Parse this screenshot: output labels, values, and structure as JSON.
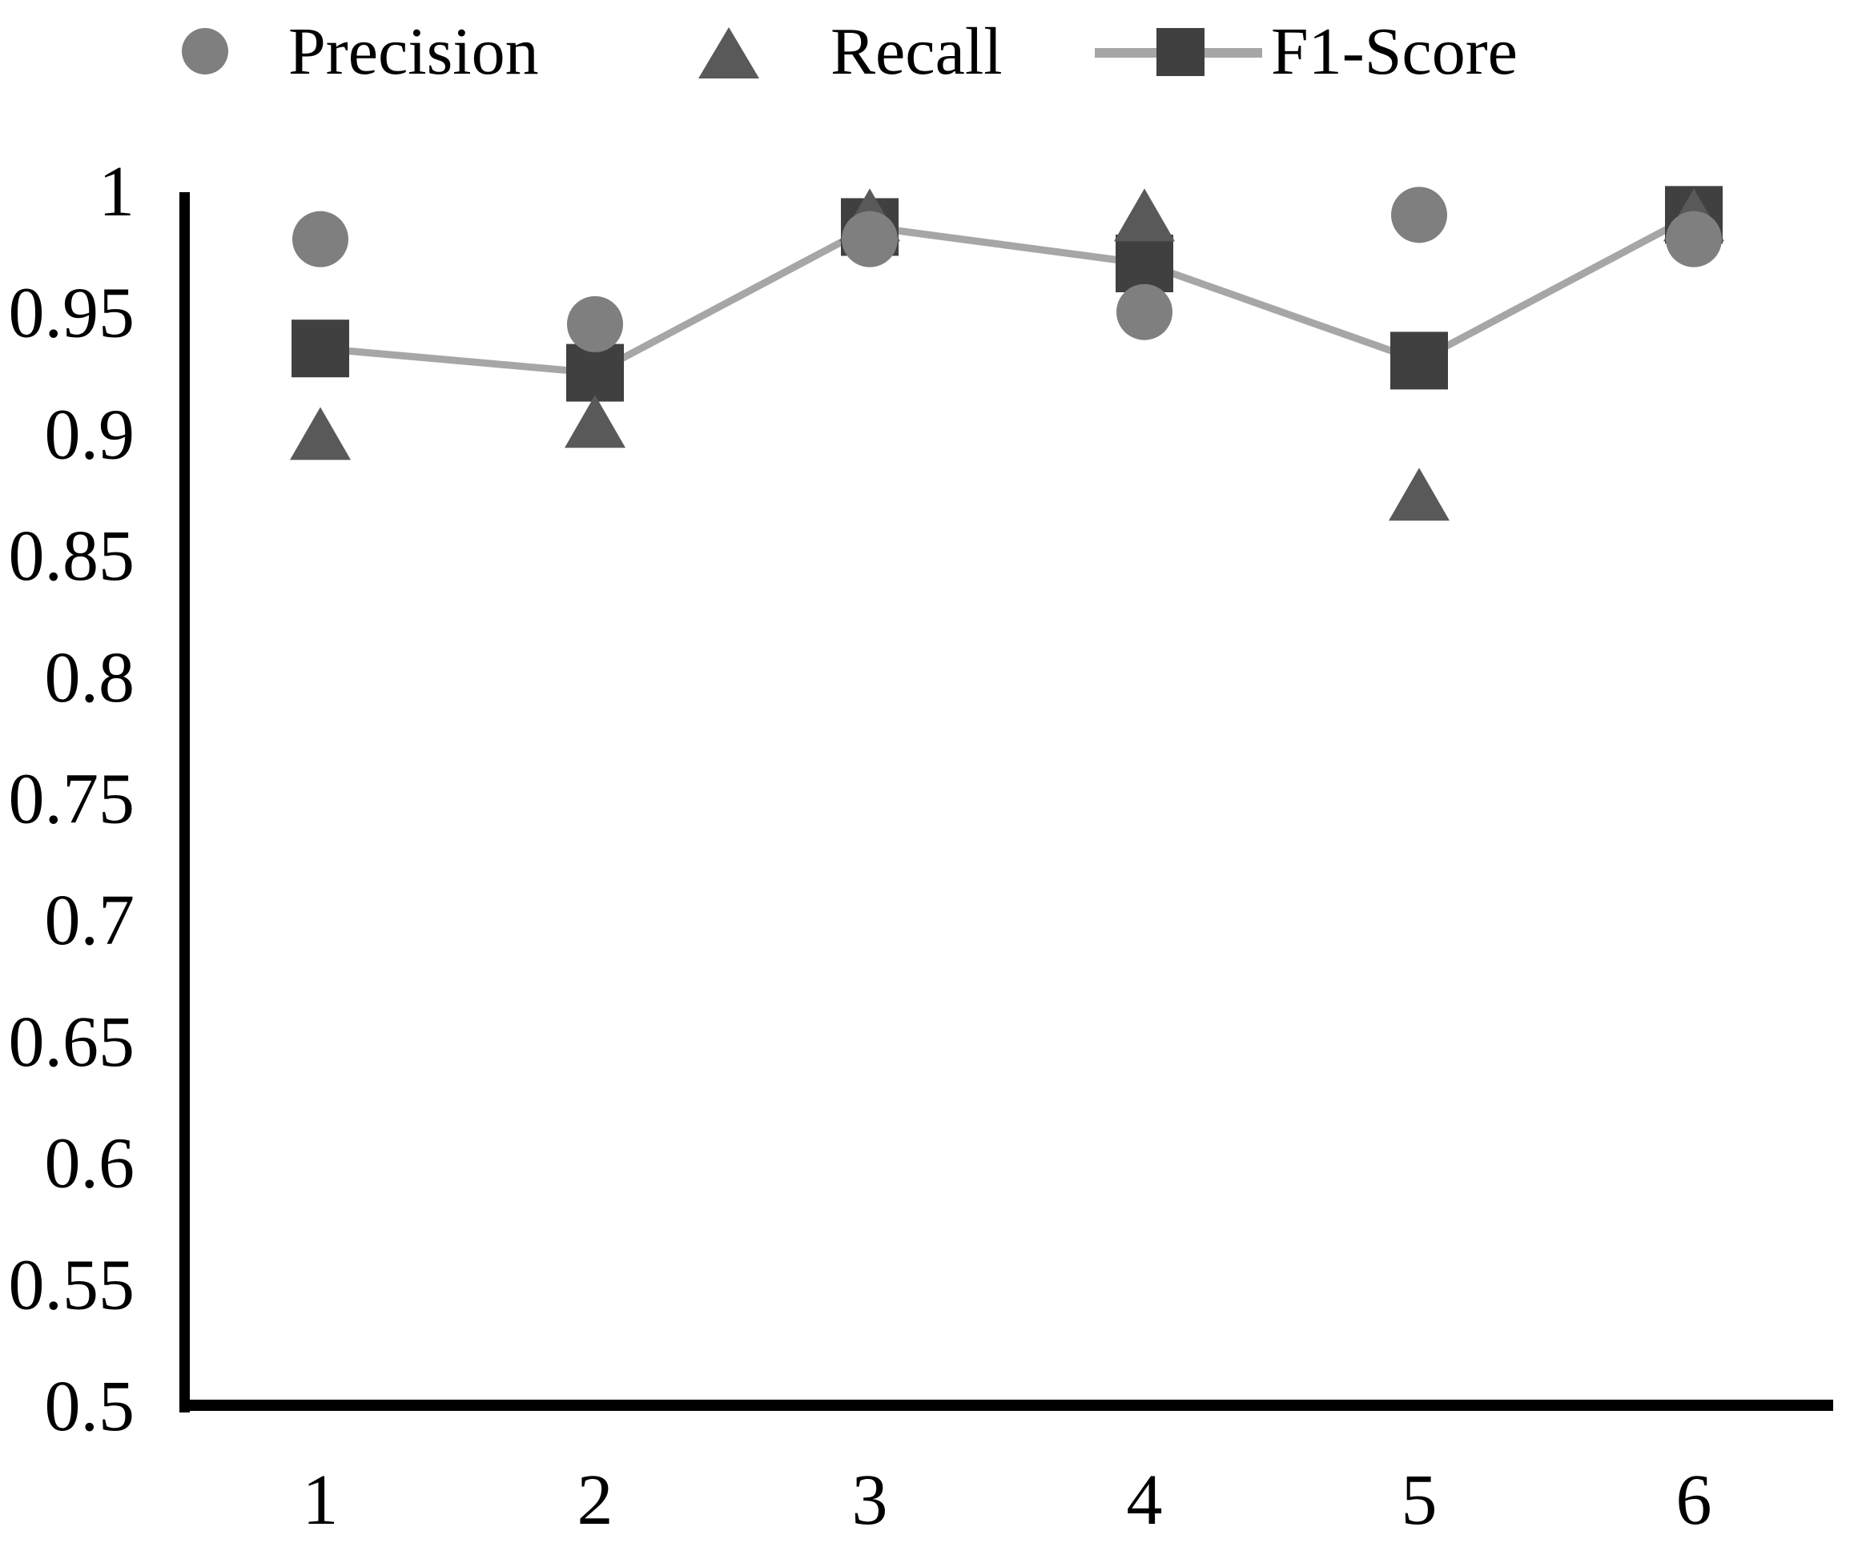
{
  "chart_data": {
    "type": "line",
    "title": "",
    "xlabel": "",
    "ylabel": "",
    "x": [
      1,
      2,
      3,
      4,
      5,
      6
    ],
    "xtick_labels": [
      "1",
      "2",
      "3",
      "4",
      "5",
      "6"
    ],
    "ytick_values": [
      1,
      0.95,
      0.9,
      0.85,
      0.8,
      0.75,
      0.7,
      0.65,
      0.6,
      0.55,
      0.5
    ],
    "ytick_labels": [
      "1",
      "0.95",
      "0.9",
      "0.85",
      "0.8",
      "0.75",
      "0.7",
      "0.65",
      "0.6",
      "0.55",
      "0.5"
    ],
    "ylim": [
      0.5,
      1
    ],
    "grid": false,
    "legend_position": "top",
    "background": "#ffffff",
    "axis_color": "#000000",
    "text_color": "#000000",
    "series": [
      {
        "name": "Precision",
        "marker": "circle",
        "color": "#7f7f7f",
        "line": false,
        "values": [
          0.98,
          0.945,
          0.98,
          0.95,
          0.99,
          0.98
        ]
      },
      {
        "name": "Recall",
        "marker": "triangle",
        "color": "#595959",
        "line": false,
        "values": [
          0.9,
          0.905,
          0.99,
          0.99,
          0.875,
          0.99
        ]
      },
      {
        "name": "F1-Score",
        "marker": "square",
        "color": "#404040",
        "line": true,
        "line_color": "#a6a6a6",
        "values": [
          0.935,
          0.925,
          0.985,
          0.97,
          0.93,
          0.99
        ]
      }
    ]
  }
}
